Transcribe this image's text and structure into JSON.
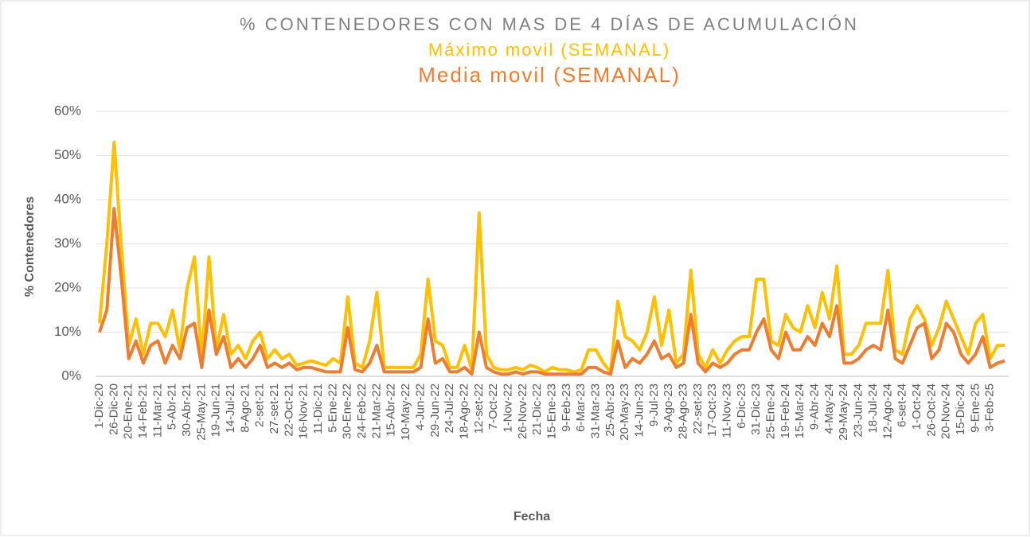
{
  "chart_data": {
    "type": "line",
    "title": "% CONTENEDORES CON MAS DE 4 DÍAS DE ACUMULACIÓN",
    "subtitle": "Máximo movil (SEMANAL)",
    "subtitle2": "Media movil (SEMANAL)",
    "x_label": "Fecha",
    "y_label": "% Contenedores",
    "categories": [
      "1-Dic-20",
      null,
      "26-Dic-20",
      null,
      "20-Ene-21",
      null,
      "14-Feb-21",
      null,
      "11-Mar-21",
      null,
      "5-Abr-21",
      null,
      "30-Abr-21",
      null,
      "25-May-21",
      null,
      "19-Jun-21",
      null,
      "14-Jul-21",
      null,
      "8-Ago-21",
      null,
      "2-set-21",
      null,
      "27-set-21",
      null,
      "22-Oct-21",
      null,
      "16-Nov-21",
      null,
      "11-Dic-21",
      null,
      "5-Ene-22",
      null,
      "30-Ene-22",
      null,
      "24-Feb-22",
      null,
      "21-Mar-22",
      null,
      "15-Abr-22",
      null,
      "10-May-22",
      null,
      "4-Jun-22",
      null,
      "29-Jun-22",
      null,
      "24-Jul-22",
      null,
      "18-Ago-22",
      null,
      "12-set-22",
      null,
      "7-Oct-22",
      null,
      "1-Nov-22",
      null,
      "26-Nov-22",
      null,
      "21-Dic-22",
      null,
      "15-Ene-23",
      null,
      "9-Feb-23",
      null,
      "6-Mar-23",
      null,
      "31-Mar-23",
      null,
      "25-Abr-23",
      null,
      "20-May-23",
      null,
      "14-Jun-23",
      null,
      "9-Jul-23",
      null,
      "3-Ago-23",
      null,
      "28-Ago-23",
      null,
      "22-set-23",
      null,
      "17-Oct-23",
      null,
      "11-Nov-23",
      null,
      "6-Dic-23",
      null,
      "31-Dic-23",
      null,
      "25-Ene-24",
      null,
      "19-Feb-24",
      null,
      "15-Mar-24",
      null,
      "9-Abr-24",
      null,
      "4-May-24",
      null,
      "29-May-24",
      null,
      "23-Jun-24",
      null,
      "18-Jul-24",
      null,
      "12-Ago-24",
      null,
      "6-set-24",
      null,
      "1-Oct-24",
      null,
      "26-Oct-24",
      null,
      "20-Nov-24",
      null,
      "15-Dic-24",
      null,
      "9-Ene-25",
      null,
      "3-Feb-25",
      null,
      null
    ],
    "series": [
      {
        "name": "Máximo movil (SEMANAL)",
        "color": "#FFC000",
        "values": [
          12,
          30,
          53,
          29,
          7,
          13,
          5,
          12,
          12,
          9,
          15,
          6,
          20,
          27,
          4,
          27,
          6,
          14,
          5,
          7,
          4,
          8,
          10,
          4,
          6,
          4,
          5,
          2.5,
          3,
          3.5,
          3,
          2.5,
          4,
          3,
          18,
          3,
          2,
          8,
          19,
          2,
          2,
          2,
          2,
          2,
          5,
          22,
          8,
          7,
          2,
          2,
          7,
          1.5,
          37,
          5,
          2,
          1.5,
          1.5,
          2,
          1.5,
          2.5,
          2,
          1,
          2,
          1.5,
          1.5,
          1,
          1.5,
          6,
          6,
          3,
          1,
          17,
          9,
          8,
          6,
          10,
          18,
          7,
          15,
          3,
          5,
          24,
          5,
          2,
          6,
          3,
          6,
          8,
          9,
          9,
          22,
          22,
          8,
          7,
          14,
          11,
          10,
          16,
          11,
          19,
          13,
          25,
          5,
          5,
          7,
          12,
          12,
          12,
          24,
          6,
          5,
          13,
          16,
          13,
          7,
          11,
          17,
          13,
          9,
          5,
          12,
          14,
          4,
          7,
          7
        ]
      },
      {
        "name": "Media movil (SEMANAL)",
        "color": "#ED7D31",
        "values": [
          10,
          15,
          38,
          22,
          4,
          8,
          3,
          7,
          8,
          3,
          7,
          4,
          11,
          12,
          2,
          15,
          5,
          9,
          2,
          4,
          2,
          4,
          7,
          2,
          3,
          2,
          3,
          1.5,
          2,
          2,
          1.5,
          1,
          1,
          1,
          11,
          1.5,
          1,
          3,
          7,
          1,
          1,
          1,
          1,
          1,
          2,
          13,
          3,
          4,
          1,
          1,
          2,
          0.5,
          10,
          2,
          1,
          0.5,
          0.5,
          1,
          0.5,
          1,
          1,
          0.5,
          0.5,
          0.5,
          0.5,
          0.5,
          0.5,
          2,
          2,
          1,
          0.5,
          8,
          2,
          4,
          3,
          5,
          8,
          4,
          5,
          2,
          3,
          14,
          3,
          1,
          3,
          2,
          3,
          5,
          6,
          6,
          10,
          13,
          6,
          4,
          10,
          6,
          6,
          9,
          7,
          12,
          9,
          16,
          3,
          3,
          4,
          6,
          7,
          6,
          15,
          4,
          3,
          7,
          11,
          12,
          4,
          6,
          12,
          10,
          5,
          3,
          5,
          9,
          2,
          3,
          3.5
        ]
      }
    ],
    "ylim": [
      0,
      60
    ],
    "yticks": [
      {
        "value": 0,
        "label": "0%"
      },
      {
        "value": 10,
        "label": "10%"
      },
      {
        "value": 20,
        "label": "20%"
      },
      {
        "value": 30,
        "label": "30%"
      },
      {
        "value": 40,
        "label": "40%"
      },
      {
        "value": 50,
        "label": "50%"
      },
      {
        "value": 60,
        "label": "60%"
      }
    ],
    "grid": true
  }
}
